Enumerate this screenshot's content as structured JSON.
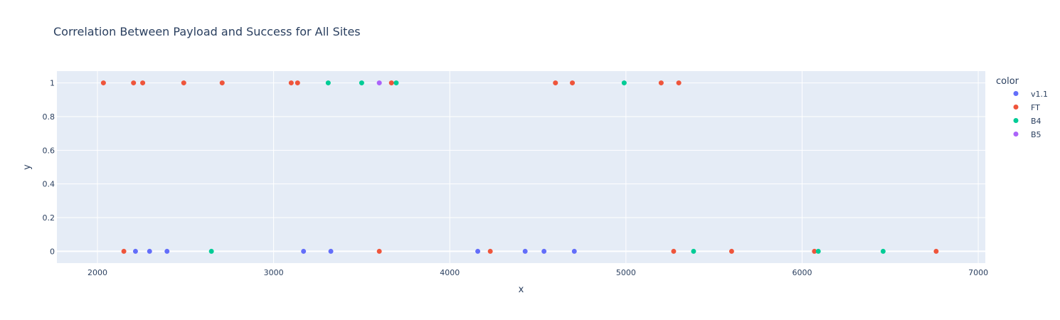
{
  "chart_data": {
    "type": "scatter",
    "title": "Correlation Between Payload and Success for All Sites",
    "xlabel": "x",
    "ylabel": "y",
    "xlim": [
      1770,
      7040
    ],
    "ylim": [
      -0.07,
      1.07
    ],
    "x_ticks": [
      2000,
      3000,
      4000,
      5000,
      6000,
      7000
    ],
    "y_ticks": [
      0,
      0.2,
      0.4,
      0.6,
      0.8,
      1
    ],
    "x_tick_labels": [
      "2000",
      "3000",
      "4000",
      "5000",
      "6000",
      "7000"
    ],
    "y_tick_labels": [
      "0",
      "0.2",
      "0.4",
      "0.6",
      "0.8",
      "1"
    ],
    "grid": true,
    "legend_title": "color",
    "legend_position": "right",
    "series": [
      {
        "name": "v1.1",
        "color": "#636efa",
        "points": [
          {
            "x": 2216,
            "y": 0
          },
          {
            "x": 2296,
            "y": 0
          },
          {
            "x": 2395,
            "y": 0
          },
          {
            "x": 3170,
            "y": 0
          },
          {
            "x": 3325,
            "y": 0
          },
          {
            "x": 4159,
            "y": 0
          },
          {
            "x": 4428,
            "y": 0
          },
          {
            "x": 4535,
            "y": 0
          },
          {
            "x": 4707,
            "y": 0
          }
        ]
      },
      {
        "name": "FT",
        "color": "#ef553b",
        "points": [
          {
            "x": 2034,
            "y": 1
          },
          {
            "x": 2205,
            "y": 1
          },
          {
            "x": 2257,
            "y": 1
          },
          {
            "x": 2490,
            "y": 1
          },
          {
            "x": 2708,
            "y": 1
          },
          {
            "x": 3100,
            "y": 1
          },
          {
            "x": 3136,
            "y": 1
          },
          {
            "x": 3669,
            "y": 1
          },
          {
            "x": 4600,
            "y": 1
          },
          {
            "x": 4696,
            "y": 1
          },
          {
            "x": 5200,
            "y": 1
          },
          {
            "x": 5300,
            "y": 1
          },
          {
            "x": 2150,
            "y": 0
          },
          {
            "x": 3600,
            "y": 0
          },
          {
            "x": 4230,
            "y": 0
          },
          {
            "x": 5271,
            "y": 0
          },
          {
            "x": 5600,
            "y": 0
          },
          {
            "x": 6070,
            "y": 0
          },
          {
            "x": 6761,
            "y": 0
          }
        ]
      },
      {
        "name": "B4",
        "color": "#00cc96",
        "points": [
          {
            "x": 3310,
            "y": 1
          },
          {
            "x": 3500,
            "y": 1
          },
          {
            "x": 3696,
            "y": 1
          },
          {
            "x": 4990,
            "y": 1
          },
          {
            "x": 2647,
            "y": 0
          },
          {
            "x": 5384,
            "y": 0
          },
          {
            "x": 6092,
            "y": 0
          },
          {
            "x": 6460,
            "y": 0
          }
        ]
      },
      {
        "name": "B5",
        "color": "#ab63fa",
        "points": [
          {
            "x": 3600,
            "y": 1
          }
        ]
      }
    ]
  }
}
